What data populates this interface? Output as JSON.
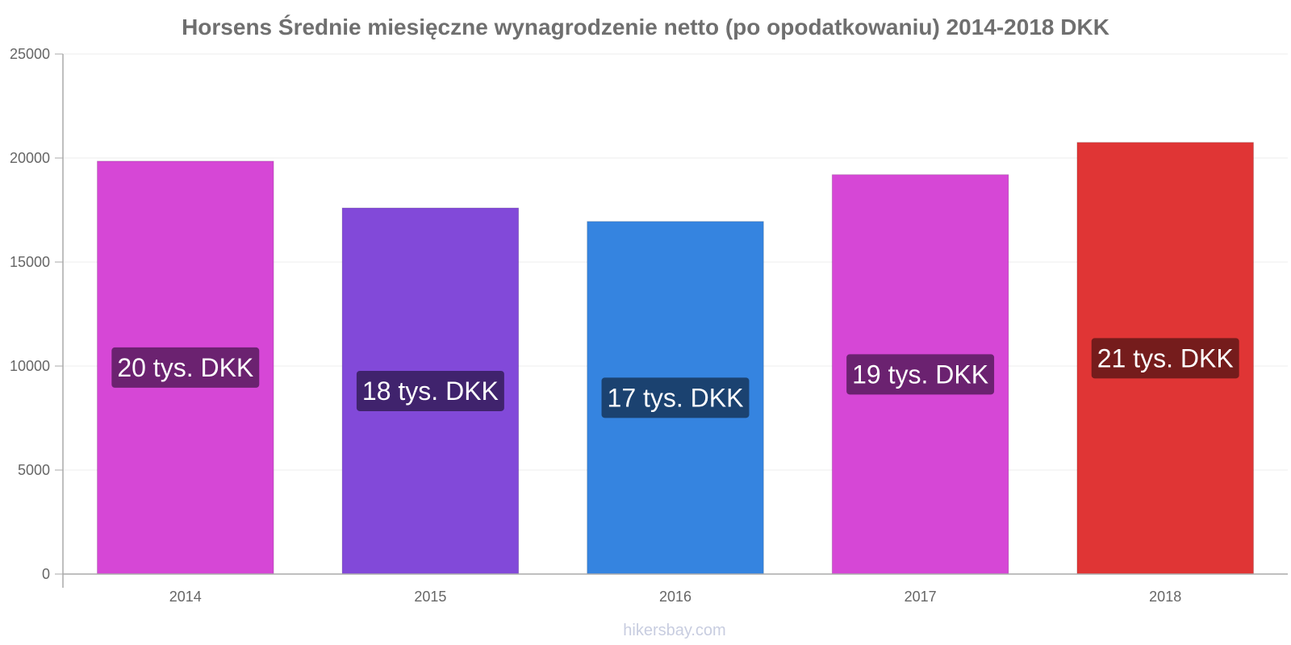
{
  "chart_data": {
    "type": "bar",
    "title": "Horsens Średnie miesięczne wynagrodzenie netto (po opodatkowaniu) 2014-2018 DKK",
    "xlabel": "",
    "ylabel": "",
    "categories": [
      "2014",
      "2015",
      "2016",
      "2017",
      "2018"
    ],
    "values": [
      19850,
      17600,
      16950,
      19200,
      20750
    ],
    "data_labels": [
      "20 tys. DKK",
      "18 tys. DKK",
      "17 tys. DKK",
      "19 tys. DKK",
      "21 tys. DKK"
    ],
    "ylim": [
      0,
      25000
    ],
    "yticks": [
      0,
      5000,
      10000,
      15000,
      20000,
      25000
    ],
    "ytick_labels": [
      "0",
      "5000",
      "10000",
      "15000",
      "20000",
      "25000"
    ],
    "grid": true,
    "legend": "none",
    "bar_colors": [
      "#d647d6",
      "#8249d9",
      "#3584e0",
      "#d647d6",
      "#e03535"
    ],
    "label_bg_colors": [
      "#6b2270",
      "#40236d",
      "#1b4270",
      "#6b2270",
      "#751c1c"
    ]
  },
  "watermark": "hikersbay.com"
}
